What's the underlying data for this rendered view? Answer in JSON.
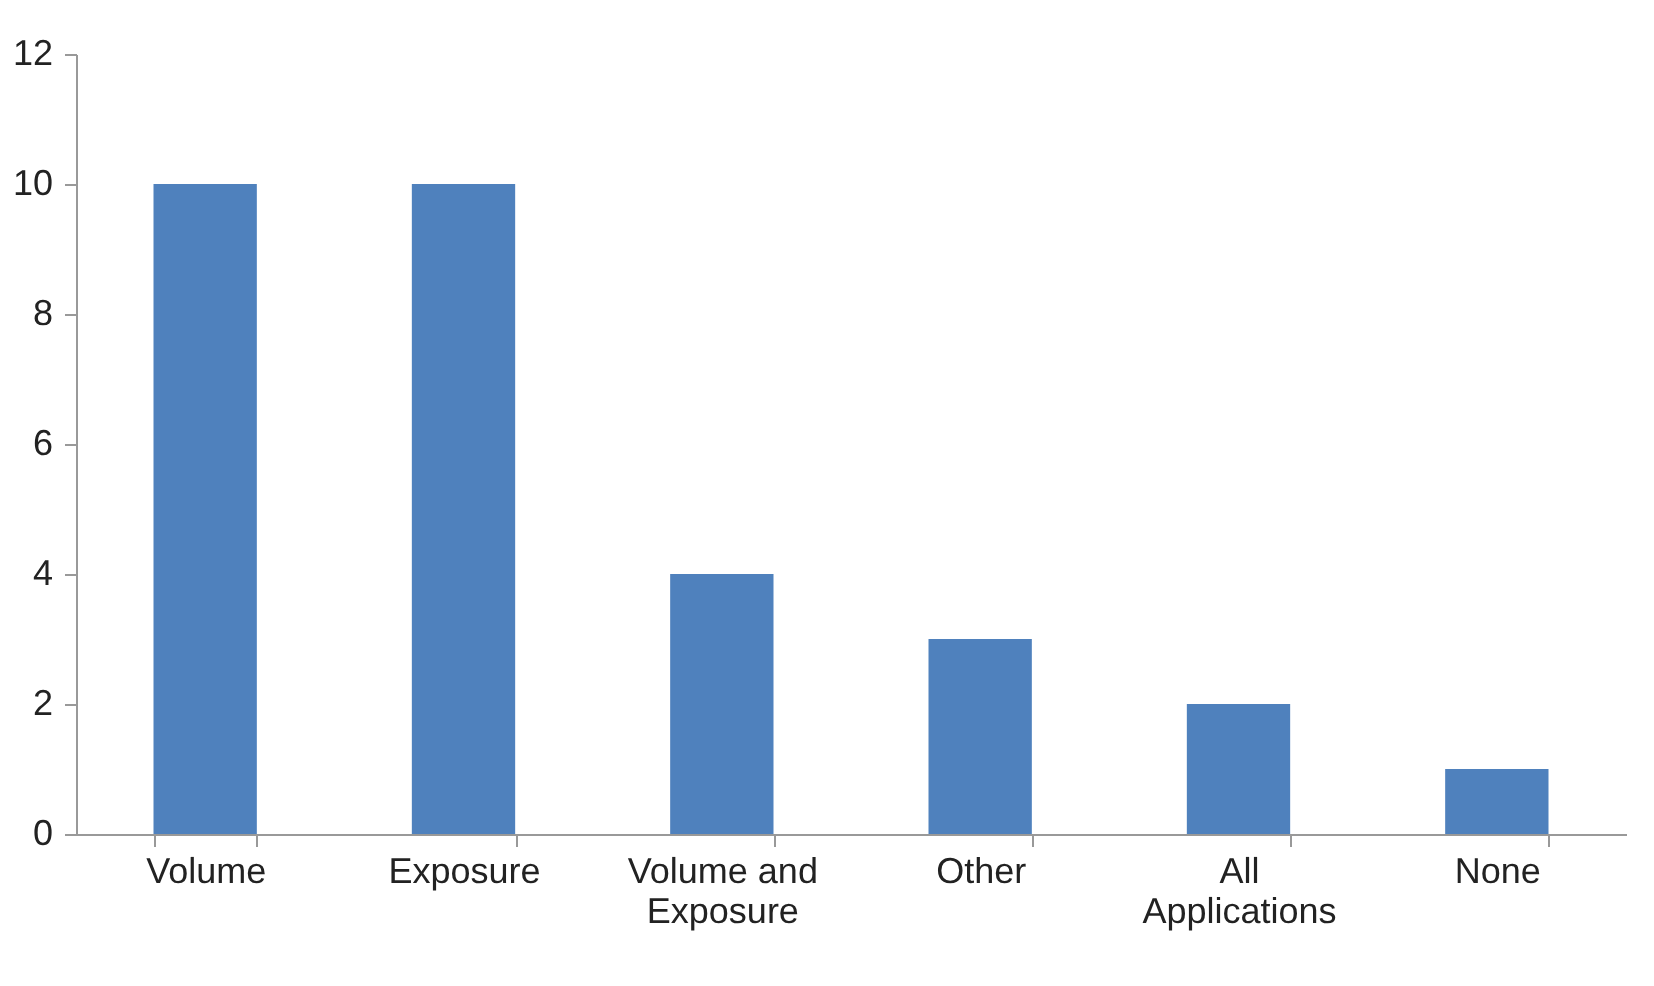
{
  "chart_data": {
    "type": "bar",
    "categories": [
      "Volume",
      "Exposure",
      "Volume and Exposure",
      "Other",
      "All Applications",
      "None"
    ],
    "values": [
      10,
      10,
      4,
      3,
      2,
      1
    ],
    "color": "#4f81bd",
    "ylim": [
      0,
      12
    ],
    "yticks": [
      0,
      2,
      4,
      6,
      8,
      10,
      12
    ],
    "grid": false
  }
}
